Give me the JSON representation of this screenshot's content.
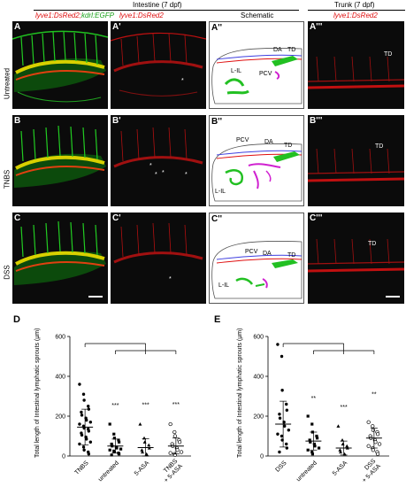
{
  "header": {
    "intestine": "Intestine (7 dpf)",
    "trunk": "Trunk (7 dpf)",
    "col1_a": "lyve1:DsRed2",
    "col1_sep": ";",
    "col1_b": "kdrl:EGFP",
    "col2": "lyve1:DsRed2",
    "col3": "Schematic",
    "col4": "lyve1:DsRed2"
  },
  "rows": [
    {
      "label": "Untreated",
      "panels": [
        "A",
        "A'",
        "A''",
        "A'''"
      ]
    },
    {
      "label": "TNBS",
      "panels": [
        "B",
        "B'",
        "B''",
        "B'''"
      ]
    },
    {
      "label": "DSS",
      "panels": [
        "C",
        "C'",
        "C''",
        "C'''"
      ]
    }
  ],
  "schematic_labels": {
    "row1": [
      "DA",
      "TD",
      "L-IL",
      "PCV"
    ],
    "row2": [
      "PCV",
      "DA",
      "TD",
      "L-IL"
    ],
    "row3": [
      "PCV",
      "DA",
      "TD",
      "L-IL"
    ]
  },
  "trunk_label": "TD",
  "asterisk": "*",
  "colors": {
    "red": "#e01010",
    "green": "#22c022",
    "magenta": "#d020d0",
    "blue": "#4040e0"
  },
  "chart_data": [
    {
      "panel": "D",
      "type": "scatter",
      "ylabel": "Total length of Intestinal lymphatic sprouts (µm)",
      "ylim": [
        0,
        600
      ],
      "yticks": [
        0,
        200,
        400,
        600
      ],
      "categories": [
        "TNBS",
        "untreated",
        "5-ASA",
        "TNBS + 5-ASA"
      ],
      "significance": [
        "",
        "***",
        "***",
        "***"
      ],
      "means": [
        145,
        50,
        42,
        50
      ],
      "sd": [
        90,
        35,
        45,
        40
      ],
      "markers": [
        "filled-circle",
        "filled-square",
        "filled-triangle",
        "open-circle"
      ],
      "points": [
        [
          360,
          310,
          280,
          250,
          235,
          220,
          205,
          190,
          180,
          170,
          160,
          150,
          140,
          135,
          125,
          115,
          105,
          95,
          85,
          70,
          60,
          45,
          30,
          20,
          10
        ],
        [
          160,
          110,
          90,
          80,
          70,
          60,
          50,
          45,
          40,
          35,
          30,
          25,
          20,
          15,
          10,
          5
        ],
        [
          160,
          90,
          70,
          55,
          40,
          30,
          20,
          10,
          5
        ],
        [
          160,
          120,
          100,
          80,
          70,
          60,
          50,
          40,
          30,
          20,
          15,
          10,
          5
        ]
      ]
    },
    {
      "panel": "E",
      "type": "scatter",
      "ylabel": "Total length of Intestinal lymphatic sprouts (µm)",
      "ylim": [
        0,
        600
      ],
      "yticks": [
        0,
        200,
        400,
        600
      ],
      "categories": [
        "DSS",
        "untreated",
        "5-ASA",
        "DSS + 5-ASA"
      ],
      "significance": [
        "",
        "**",
        "***",
        "**"
      ],
      "means": [
        160,
        75,
        40,
        90
      ],
      "sd": [
        115,
        45,
        35,
        50
      ],
      "markers": [
        "filled-circle",
        "filled-square",
        "filled-triangle",
        "open-circle"
      ],
      "points": [
        [
          560,
          500,
          330,
          260,
          230,
          210,
          190,
          170,
          150,
          130,
          110,
          100,
          80,
          60,
          40,
          20
        ],
        [
          200,
          160,
          120,
          100,
          90,
          80,
          70,
          60,
          50,
          40,
          30,
          20,
          10
        ],
        [
          150,
          80,
          60,
          50,
          40,
          30,
          20,
          10
        ],
        [
          170,
          150,
          130,
          120,
          110,
          100,
          90,
          80,
          70,
          60,
          50,
          40,
          30,
          20,
          10
        ]
      ]
    }
  ]
}
